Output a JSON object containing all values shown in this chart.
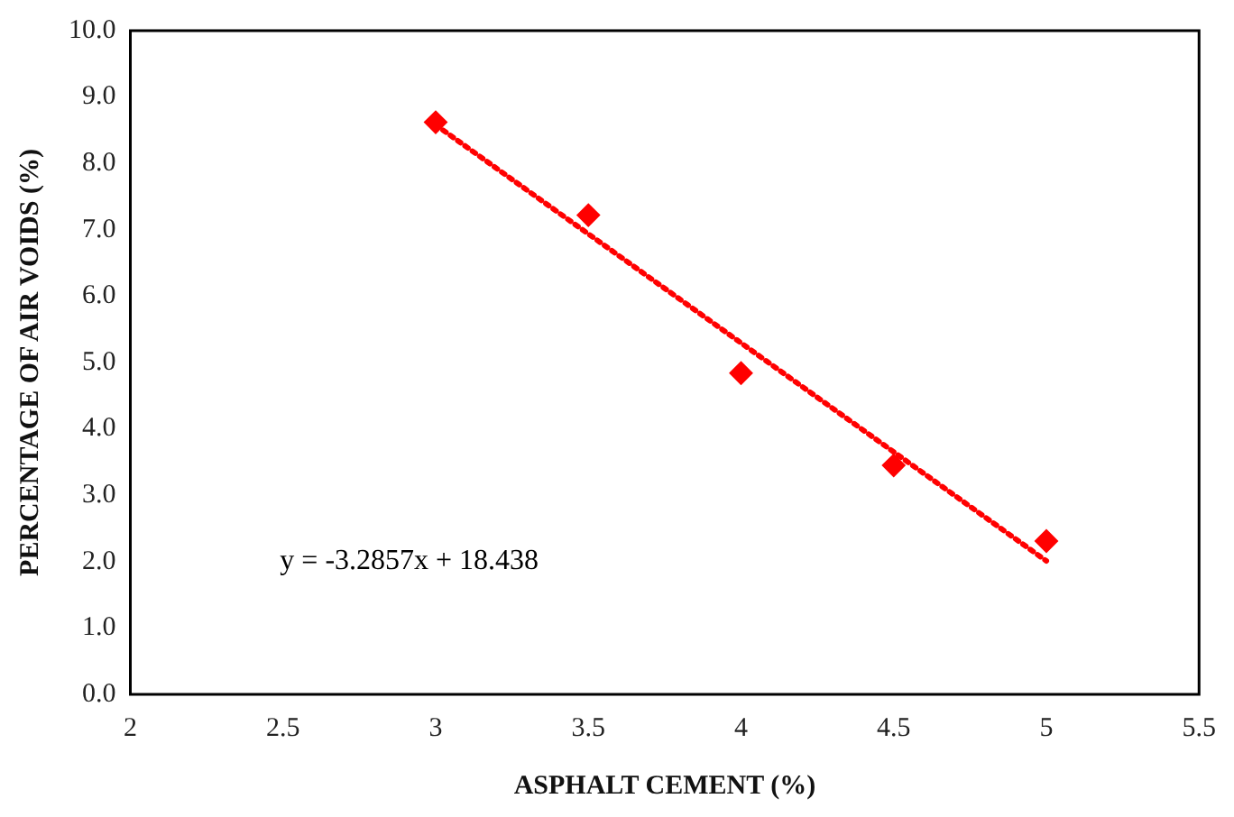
{
  "chart_data": {
    "type": "scatter",
    "xlabel": "ASPHALT CEMENT (%)",
    "ylabel": "PERCENTAGE OF AIR VOIDS (%)",
    "xlim": [
      2,
      5.5
    ],
    "xticks": [
      2,
      2.5,
      3,
      3.5,
      4,
      4.5,
      5,
      5.5
    ],
    "ylim": [
      0,
      10
    ],
    "yticks": [
      {
        "value": 0,
        "label": "0.0"
      },
      {
        "value": 1,
        "label": "1.0"
      },
      {
        "value": 2,
        "label": "2.0"
      },
      {
        "value": 3,
        "label": "3.0"
      },
      {
        "value": 4,
        "label": "4.0"
      },
      {
        "value": 5,
        "label": "5.0"
      },
      {
        "value": 6,
        "label": "6.0"
      },
      {
        "value": 7,
        "label": "7.0"
      },
      {
        "value": 8,
        "label": "8.0"
      },
      {
        "value": 9,
        "label": "9.0"
      },
      {
        "value": 10,
        "label": "10.0"
      }
    ],
    "grid": false,
    "legend": false,
    "marker": "diamond",
    "series": [
      {
        "type": "scatter",
        "color": "#ff0000",
        "x": [
          3,
          3.5,
          4,
          4.5,
          5
        ],
        "values": [
          8.62,
          7.22,
          4.84,
          3.45,
          2.31
        ]
      },
      {
        "type": "line",
        "color": "#ff0000",
        "line_style": "dotted",
        "marker": "none",
        "x": [
          3,
          5
        ],
        "values": [
          8.58,
          2.01
        ]
      }
    ],
    "annotations": [
      "y = -3.2857x + 18.438"
    ]
  }
}
